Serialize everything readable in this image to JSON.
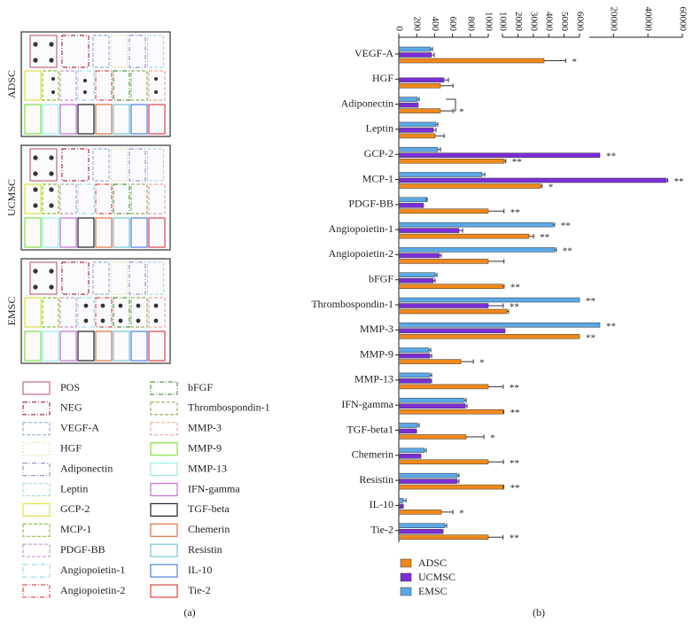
{
  "panel_a": {
    "label": "(a)",
    "arrays": [
      "ADSC",
      "UCMSC",
      "EMSC"
    ],
    "legend": [
      {
        "name": "POS",
        "color": "#c06a86",
        "dash": "solid"
      },
      {
        "name": "NEG",
        "color": "#a8324a",
        "dash": "dashdot"
      },
      {
        "name": "VEGF-A",
        "color": "#8fb3dc",
        "dash": "dashed"
      },
      {
        "name": "HGF",
        "color": "#e8d890",
        "dash": "dotted"
      },
      {
        "name": "Adiponectin",
        "color": "#9a96cc",
        "dash": "dashdot"
      },
      {
        "name": "Leptin",
        "color": "#a8dce6",
        "dash": "dashed"
      },
      {
        "name": "GCP-2",
        "color": "#e2e040",
        "dash": "solid"
      },
      {
        "name": "MCP-1",
        "color": "#8cc43c",
        "dash": "dashed"
      },
      {
        "name": "PDGF-BB",
        "color": "#c896cc",
        "dash": "dashed"
      },
      {
        "name": "Angiopoietin-1",
        "color": "#98dce8",
        "dash": "dashdot"
      },
      {
        "name": "Angiopoietin-2",
        "color": "#e05050",
        "dash": "dashdot"
      },
      {
        "name": "bFGF",
        "color": "#4e9a3c",
        "dash": "dashdot"
      },
      {
        "name": "Thrombospondin-1",
        "color": "#96b464",
        "dash": "dashed"
      },
      {
        "name": "MMP-3",
        "color": "#f0aaa0",
        "dash": "dashed"
      },
      {
        "name": "MMP-9",
        "color": "#80e040",
        "dash": "solid"
      },
      {
        "name": "MMP-13",
        "color": "#98ece8",
        "dash": "solid"
      },
      {
        "name": "IFN-gamma",
        "color": "#c070d4",
        "dash": "solid"
      },
      {
        "name": "TGF-beta",
        "color": "#202020",
        "dash": "solid"
      },
      {
        "name": "Chemerin",
        "color": "#e07040",
        "dash": "solid"
      },
      {
        "name": "Resistin",
        "color": "#70c8d4",
        "dash": "solid"
      },
      {
        "name": "IL-10",
        "color": "#5080e0",
        "dash": "solid"
      },
      {
        "name": "Tie-2",
        "color": "#e04444",
        "dash": "solid"
      }
    ]
  },
  "chart_data": {
    "type": "bar",
    "orientation": "horizontal",
    "label": "(b)",
    "categories": [
      "VEGF-A",
      "HGF",
      "Adiponectin",
      "Leptin",
      "GCP-2",
      "MCP-1",
      "PDGF-BB",
      "Angiopoietin-1",
      "Angiopoietin-2",
      "bFGF",
      "Thrombospondin-1",
      "MMP-3",
      "MMP-9",
      "MMP-13",
      "IFN-gamma",
      "TGF-beta1",
      "Chemerin",
      "Resistin",
      "IL-10",
      "Tie-2"
    ],
    "xsegments": [
      {
        "xlim": [
          0,
          1000
        ],
        "xticks": [
          0,
          200,
          400,
          600,
          800,
          1000
        ]
      },
      {
        "xlim": [
          1000,
          6000
        ],
        "xticks": [
          1000,
          2000,
          3000,
          4000,
          5000,
          6000
        ]
      },
      {
        "xlim": [
          6000,
          60000
        ],
        "xticks": [
          20000,
          40000,
          60000
        ]
      }
    ],
    "series": [
      {
        "name": "EMSC",
        "color": "#5aa9e6",
        "values": [
          356,
          0,
          208,
          416,
          436,
          931,
          307,
          4280,
          4390,
          406,
          6000,
          12170,
          337,
          347,
          733,
          208,
          287,
          653,
          50,
          515
        ],
        "errors": [
          20,
          null,
          20,
          20,
          30,
          30,
          10,
          100,
          100,
          20,
          null,
          null,
          20,
          20,
          20,
          20,
          20,
          20,
          30,
          20
        ],
        "markers": [
          null,
          null,
          null,
          null,
          null,
          null,
          null,
          "**",
          "**",
          null,
          "**",
          "**",
          null,
          null,
          null,
          null,
          null,
          null,
          null,
          null
        ]
      },
      {
        "name": "UCMSC",
        "color": "#7b2ed6",
        "values": [
          366,
          505,
          218,
          386,
          12170,
          50740,
          277,
          673,
          455,
          386,
          1000,
          1170,
          347,
          356,
          743,
          188,
          248,
          653,
          40,
          485
        ],
        "errors": [
          30,
          50,
          null,
          30,
          null,
          800,
          null,
          40,
          20,
          20,
          50,
          null,
          20,
          10,
          20,
          10,
          null,
          20,
          10,
          10
        ],
        "markers": [
          null,
          null,
          null,
          null,
          "**",
          "**",
          null,
          null,
          null,
          null,
          "**",
          null,
          null,
          null,
          null,
          null,
          null,
          null,
          null,
          null
        ]
      },
      {
        "name": "ADSC",
        "color": "#f08a1c",
        "values": [
          3700,
          465,
          465,
          406,
          1115,
          3470,
          1000,
          2720,
          1000,
          1030,
          1290,
          6000,
          693,
          1000,
          1030,
          752,
          1000,
          1030,
          475,
          1000
        ],
        "errors": [
          1400,
          140,
          140,
          100,
          100,
          100,
          100,
          300,
          100,
          80,
          100,
          null,
          140,
          50,
          60,
          200,
          60,
          60,
          130,
          40
        ],
        "markers": [
          "*",
          null,
          "*",
          null,
          "**",
          "*",
          "**",
          "**",
          null,
          "**",
          null,
          "**",
          "*",
          "**",
          "**",
          "*",
          "**",
          "**",
          "*",
          "**"
        ]
      }
    ],
    "legend_order": [
      2,
      1,
      0
    ]
  }
}
